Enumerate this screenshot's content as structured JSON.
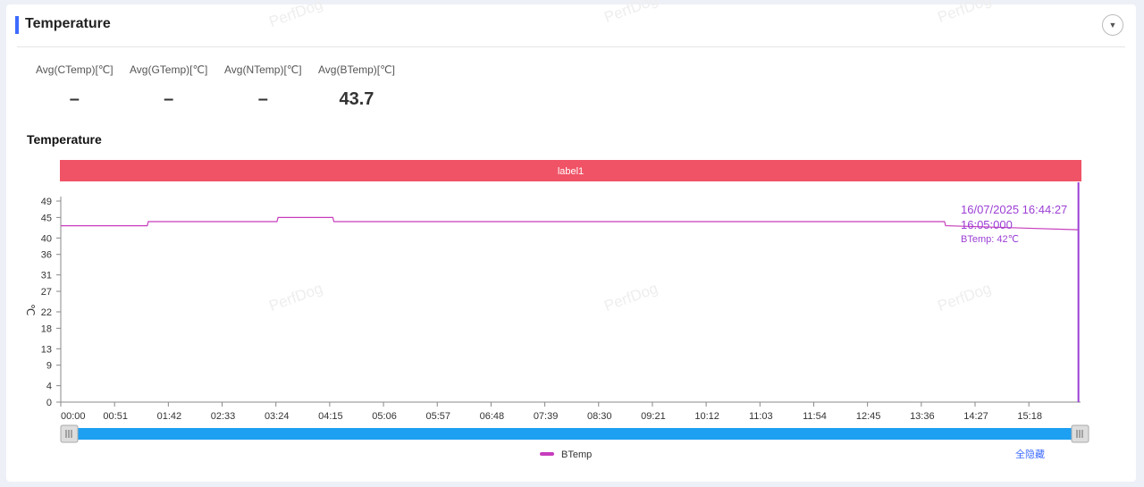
{
  "panel": {
    "title": "Temperature"
  },
  "stats": [
    {
      "label": "Avg(CTemp)[℃]",
      "value": "–"
    },
    {
      "label": "Avg(GTemp)[℃]",
      "value": "–"
    },
    {
      "label": "Avg(NTemp)[℃]",
      "value": "–"
    },
    {
      "label": "Avg(BTemp)[℃]",
      "value": "43.7"
    }
  ],
  "watermark": "PerfDog",
  "colors": {
    "accent": "#3d6bff",
    "label_band": "#f05366",
    "series": "#c73dbd",
    "cursor": "#9b3fd4",
    "scrollbar": "#1d9ff2"
  },
  "chart_data": {
    "type": "line",
    "title": "Temperature",
    "label_band": "label1",
    "ylabel": "℃",
    "yticks": [
      0,
      4,
      9,
      13,
      18,
      22,
      27,
      31,
      36,
      40,
      45,
      49
    ],
    "ylim": [
      0,
      49
    ],
    "xticks": [
      "00:00",
      "00:51",
      "01:42",
      "02:33",
      "03:24",
      "04:15",
      "05:06",
      "05:57",
      "06:48",
      "07:39",
      "08:30",
      "09:21",
      "10:12",
      "11:03",
      "11:54",
      "12:45",
      "13:36",
      "14:27",
      "15:18"
    ],
    "xlim_seconds": [
      0,
      967
    ],
    "series": [
      {
        "name": "BTemp",
        "x": [
          "00:00",
          "01:22",
          "01:23",
          "03:25",
          "03:26",
          "04:18",
          "04:19",
          "13:58",
          "13:59",
          "16:05"
        ],
        "y": [
          43,
          43,
          44,
          44,
          45,
          45,
          44,
          44,
          43,
          42
        ]
      }
    ],
    "tooltip": {
      "date": "16/07/2025 16:44:27",
      "time": "16:05:000",
      "text": "BTemp: 42℃"
    },
    "legend": [
      "BTemp"
    ],
    "legend_position": "bottom-center",
    "grid": false,
    "reset_label": "全隐藏"
  }
}
